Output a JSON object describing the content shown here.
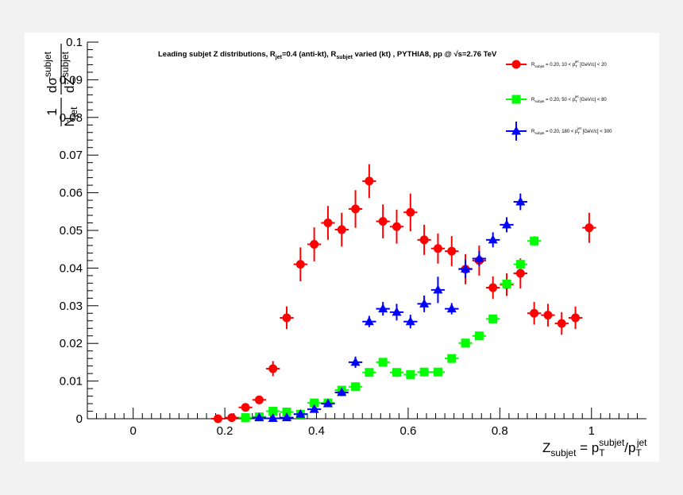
{
  "chart_data": {
    "type": "scatter",
    "title": "Leading subjet Z distributions, R_jet=0.4 (anti-kt), R_subjet varied (kt) , PYTHIA8, pp @ √s=2.76 TeV",
    "title_parts": {
      "p1": "Leading subjet Z distributions, R",
      "p1_sub": "jet",
      "p2": "=0.4 (anti-kt), R",
      "p2_sub": "subjet",
      "p3": " varied (kt) , PYTHIA8, pp @ ",
      "p3_sqrt": "√s",
      "p4": "=2.76 TeV"
    },
    "xlabel": "Z_subjet = p_T^subjet/p_T^jet",
    "ylabel": "(1/N_jet) dσ^subjet/dZ^subjet",
    "xlim": [
      -0.1,
      1.12
    ],
    "ylim": [
      0,
      0.1
    ],
    "x_ticks": [
      {
        "v": 0,
        "label": "0"
      },
      {
        "v": 0.2,
        "label": "0.2"
      },
      {
        "v": 0.4,
        "label": "0.4"
      },
      {
        "v": 0.6,
        "label": "0.6"
      },
      {
        "v": 0.8,
        "label": "0.8"
      },
      {
        "v": 1.0,
        "label": "1"
      }
    ],
    "y_ticks": [
      {
        "v": 0,
        "label": "0"
      },
      {
        "v": 0.01,
        "label": "0.01"
      },
      {
        "v": 0.02,
        "label": "0.02"
      },
      {
        "v": 0.03,
        "label": "0.03"
      },
      {
        "v": 0.04,
        "label": "0.04"
      },
      {
        "v": 0.05,
        "label": "0.05"
      },
      {
        "v": 0.06,
        "label": "0.06"
      },
      {
        "v": 0.07,
        "label": "0.07"
      },
      {
        "v": 0.08,
        "label": "0.08"
      },
      {
        "v": 0.09,
        "label": "0.09"
      },
      {
        "v": 0.1,
        "label": "0.1"
      }
    ],
    "grid": false,
    "legend_position": "top-right",
    "bin_half_width": 0.015,
    "series": [
      {
        "name": "R_subjet = 0.20, 10 < p_T^jet [GeV/c] < 20",
        "legend_parts": {
          "r": "R",
          "rsub": "subjet",
          "mid": " = 0.20,  10 < p",
          "psub": "T",
          "psup": "jet",
          "end": " [GeV/c] <  20"
        },
        "color": "#ff0000",
        "marker": "circle",
        "points": [
          {
            "x": 0.185,
            "y": 0.0,
            "err": 0.0002
          },
          {
            "x": 0.215,
            "y": 0.0003,
            "err": 0.0003
          },
          {
            "x": 0.245,
            "y": 0.003,
            "err": 0.001
          },
          {
            "x": 0.275,
            "y": 0.005,
            "err": 0.0005
          },
          {
            "x": 0.305,
            "y": 0.0133,
            "err": 0.002
          },
          {
            "x": 0.335,
            "y": 0.0268,
            "err": 0.003
          },
          {
            "x": 0.365,
            "y": 0.041,
            "err": 0.0045
          },
          {
            "x": 0.395,
            "y": 0.0463,
            "err": 0.0045
          },
          {
            "x": 0.425,
            "y": 0.052,
            "err": 0.0045
          },
          {
            "x": 0.455,
            "y": 0.0502,
            "err": 0.0045
          },
          {
            "x": 0.485,
            "y": 0.0557,
            "err": 0.005
          },
          {
            "x": 0.515,
            "y": 0.0631,
            "err": 0.0045
          },
          {
            "x": 0.545,
            "y": 0.0524,
            "err": 0.0045
          },
          {
            "x": 0.575,
            "y": 0.051,
            "err": 0.0045
          },
          {
            "x": 0.605,
            "y": 0.0548,
            "err": 0.005
          },
          {
            "x": 0.635,
            "y": 0.0475,
            "err": 0.004
          },
          {
            "x": 0.665,
            "y": 0.0452,
            "err": 0.004
          },
          {
            "x": 0.695,
            "y": 0.0445,
            "err": 0.004
          },
          {
            "x": 0.725,
            "y": 0.0397,
            "err": 0.004
          },
          {
            "x": 0.755,
            "y": 0.042,
            "err": 0.004
          },
          {
            "x": 0.785,
            "y": 0.0348,
            "err": 0.003
          },
          {
            "x": 0.815,
            "y": 0.0356,
            "err": 0.003
          },
          {
            "x": 0.845,
            "y": 0.0386,
            "err": 0.004
          },
          {
            "x": 0.875,
            "y": 0.028,
            "err": 0.003
          },
          {
            "x": 0.905,
            "y": 0.0275,
            "err": 0.003
          },
          {
            "x": 0.935,
            "y": 0.0253,
            "err": 0.003
          },
          {
            "x": 0.965,
            "y": 0.0268,
            "err": 0.003
          },
          {
            "x": 0.995,
            "y": 0.0507,
            "err": 0.004
          }
        ]
      },
      {
        "name": "R_subjet = 0.20, 50 < p_T^jet [GeV/c] < 80",
        "legend_parts": {
          "r": "R",
          "rsub": "subjet",
          "mid": " = 0.20,  50 < p",
          "psub": "T",
          "psup": "jet",
          "end": " [GeV/c] <  80"
        },
        "color": "#00ff00",
        "marker": "square",
        "points": [
          {
            "x": 0.245,
            "y": 0.0003,
            "err": 0.0003
          },
          {
            "x": 0.275,
            "y": 0.0005,
            "err": 0.0003
          },
          {
            "x": 0.305,
            "y": 0.002,
            "err": 0.0004
          },
          {
            "x": 0.335,
            "y": 0.0018,
            "err": 0.0004
          },
          {
            "x": 0.365,
            "y": 0.0012,
            "err": 0.0004
          },
          {
            "x": 0.395,
            "y": 0.0042,
            "err": 0.0005
          },
          {
            "x": 0.425,
            "y": 0.0042,
            "err": 0.0005
          },
          {
            "x": 0.455,
            "y": 0.0076,
            "err": 0.0006
          },
          {
            "x": 0.485,
            "y": 0.0085,
            "err": 0.0006
          },
          {
            "x": 0.515,
            "y": 0.0123,
            "err": 0.0006
          },
          {
            "x": 0.545,
            "y": 0.015,
            "err": 0.0007
          },
          {
            "x": 0.575,
            "y": 0.0123,
            "err": 0.0006
          },
          {
            "x": 0.605,
            "y": 0.0117,
            "err": 0.0006
          },
          {
            "x": 0.635,
            "y": 0.0124,
            "err": 0.0006
          },
          {
            "x": 0.665,
            "y": 0.0124,
            "err": 0.0006
          },
          {
            "x": 0.695,
            "y": 0.016,
            "err": 0.0008
          },
          {
            "x": 0.725,
            "y": 0.0201,
            "err": 0.0009
          },
          {
            "x": 0.755,
            "y": 0.022,
            "err": 0.0009
          },
          {
            "x": 0.785,
            "y": 0.0265,
            "err": 0.001
          },
          {
            "x": 0.815,
            "y": 0.0358,
            "err": 0.0012
          },
          {
            "x": 0.845,
            "y": 0.041,
            "err": 0.0013
          },
          {
            "x": 0.875,
            "y": 0.0472,
            "err": 0.0013
          }
        ]
      },
      {
        "name": "R_subjet = 0.20, 180 < p_T^jet [GeV/c] < 300",
        "legend_parts": {
          "r": "R",
          "rsub": "subjet",
          "mid": " = 0.20,  180 < p",
          "psub": "T",
          "psup": "jet",
          "end": " [GeV/c] <  300"
        },
        "color": "#0000ff",
        "marker": "triangle",
        "points": [
          {
            "x": 0.275,
            "y": 0.0003,
            "err": 0.0003
          },
          {
            "x": 0.305,
            "y": 0.0001,
            "err": 0.0002
          },
          {
            "x": 0.335,
            "y": 0.0003,
            "err": 0.0003
          },
          {
            "x": 0.365,
            "y": 0.0012,
            "err": 0.0005
          },
          {
            "x": 0.395,
            "y": 0.0025,
            "err": 0.0007
          },
          {
            "x": 0.425,
            "y": 0.004,
            "err": 0.0008
          },
          {
            "x": 0.455,
            "y": 0.007,
            "err": 0.001
          },
          {
            "x": 0.485,
            "y": 0.015,
            "err": 0.0015
          },
          {
            "x": 0.515,
            "y": 0.0258,
            "err": 0.0015
          },
          {
            "x": 0.545,
            "y": 0.0292,
            "err": 0.0018
          },
          {
            "x": 0.575,
            "y": 0.0283,
            "err": 0.0022
          },
          {
            "x": 0.605,
            "y": 0.0258,
            "err": 0.0018
          },
          {
            "x": 0.635,
            "y": 0.0305,
            "err": 0.0022
          },
          {
            "x": 0.665,
            "y": 0.0342,
            "err": 0.0035
          },
          {
            "x": 0.695,
            "y": 0.0292,
            "err": 0.0015
          },
          {
            "x": 0.725,
            "y": 0.0398,
            "err": 0.0025
          },
          {
            "x": 0.755,
            "y": 0.0425,
            "err": 0.002
          },
          {
            "x": 0.785,
            "y": 0.0475,
            "err": 0.002
          },
          {
            "x": 0.815,
            "y": 0.0515,
            "err": 0.002
          },
          {
            "x": 0.845,
            "y": 0.0576,
            "err": 0.0022
          }
        ]
      }
    ]
  }
}
